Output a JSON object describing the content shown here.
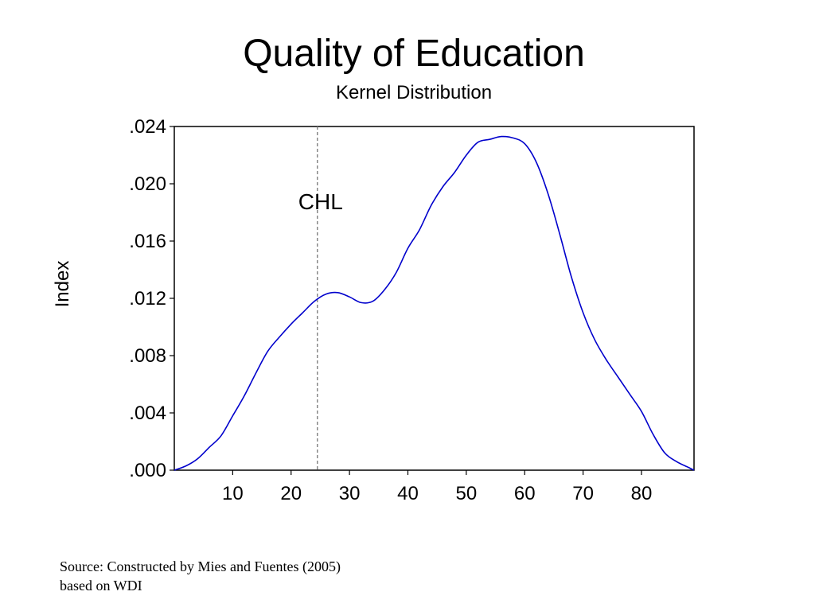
{
  "chart_data": {
    "type": "line",
    "title": "Quality of Education",
    "subtitle": "Kernel Distribution",
    "xlabel": "",
    "ylabel": "Index",
    "xlim": [
      0,
      89
    ],
    "ylim": [
      0,
      0.024
    ],
    "x_ticks": [
      10,
      20,
      30,
      40,
      50,
      60,
      70,
      80
    ],
    "y_ticks": [
      {
        "value": 0.0,
        "label": ".000"
      },
      {
        "value": 0.004,
        "label": ".004"
      },
      {
        "value": 0.008,
        "label": ".008"
      },
      {
        "value": 0.012,
        "label": ".012"
      },
      {
        "value": 0.016,
        "label": ".016"
      },
      {
        "value": 0.02,
        "label": ".020"
      },
      {
        "value": 0.024,
        "label": ".024"
      }
    ],
    "grid": false,
    "line_color": "#0000cc",
    "series": [
      {
        "x": [
          0,
          2,
          4,
          6,
          8,
          10,
          12,
          14,
          16,
          18,
          20,
          22,
          24,
          26,
          28,
          30,
          32,
          34,
          36,
          38,
          40,
          42,
          44,
          46,
          48,
          50,
          52,
          54,
          56,
          58,
          60,
          62,
          64,
          66,
          68,
          70,
          72,
          74,
          76,
          78,
          80,
          82,
          84,
          86,
          88,
          89
        ],
        "y": [
          0.0,
          0.0003,
          0.0008,
          0.0016,
          0.0024,
          0.0038,
          0.0052,
          0.0068,
          0.0083,
          0.0093,
          0.0102,
          0.011,
          0.0118,
          0.0123,
          0.0124,
          0.0121,
          0.0117,
          0.0118,
          0.0126,
          0.0138,
          0.0155,
          0.0168,
          0.0185,
          0.0198,
          0.0208,
          0.022,
          0.0229,
          0.0231,
          0.0233,
          0.0232,
          0.0228,
          0.0215,
          0.0193,
          0.0165,
          0.0135,
          0.011,
          0.0091,
          0.0077,
          0.0065,
          0.0053,
          0.0041,
          0.0025,
          0.0012,
          0.0006,
          0.0002,
          0.0
        ]
      }
    ],
    "annotations": [
      {
        "type": "vline",
        "x": 24.5,
        "label": "CHL",
        "style": "dashed",
        "color": "#808080"
      }
    ]
  },
  "source": {
    "line1": "Source: Constructed by Mies and Fuentes (2005)",
    "line2": "based on WDI"
  }
}
